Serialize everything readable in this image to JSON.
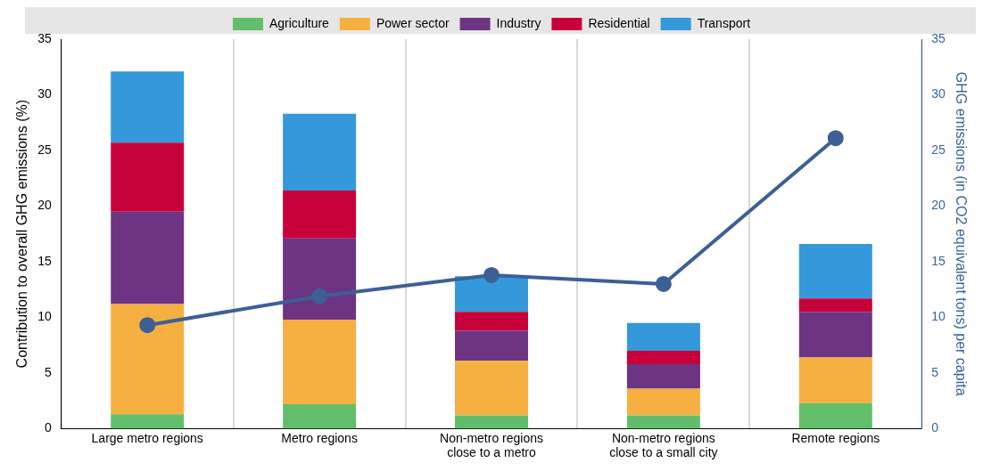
{
  "chart_data": {
    "type": "bar",
    "stacked": true,
    "categories": [
      "Large metro regions",
      "Metro regions",
      "Non-metro regions\nclose to a metro",
      "Non-metro regions\nclose to a small city",
      "Remote regions"
    ],
    "ylabel": "Contribution to overall GHG emissions (%)",
    "y2label": "GHG emissions (in CO2 equivalent tons) per capita",
    "ylim": [
      0,
      35
    ],
    "yticks": [
      0,
      5,
      10,
      15,
      20,
      25,
      30,
      35
    ],
    "y2lim": [
      0,
      35
    ],
    "y2ticks": [
      0,
      5,
      10,
      15,
      20,
      25,
      30,
      35
    ],
    "grid": "x",
    "legend": "top",
    "series": [
      {
        "name": "Agriculture",
        "color": "#63be6b",
        "values": [
          1.3,
          2.2,
          1.2,
          1.2,
          2.3
        ]
      },
      {
        "name": "Power sector",
        "color": "#f5b041",
        "values": [
          9.9,
          7.6,
          4.9,
          2.4,
          4.1
        ]
      },
      {
        "name": "Industry",
        "color": "#6c3483",
        "values": [
          8.3,
          7.3,
          2.7,
          2.2,
          4.1
        ]
      },
      {
        "name": "Residential",
        "color": "#c70039",
        "values": [
          6.2,
          4.3,
          1.7,
          1.2,
          1.2
        ]
      },
      {
        "name": "Transport",
        "color": "#3498db",
        "values": [
          6.4,
          6.9,
          3.2,
          2.5,
          4.9
        ]
      },
      {
        "type": "line",
        "axis": "y2",
        "color": "#3d5f96",
        "marker": "circle",
        "values": [
          9.3,
          11.9,
          13.8,
          13.0,
          26.1
        ]
      }
    ]
  }
}
